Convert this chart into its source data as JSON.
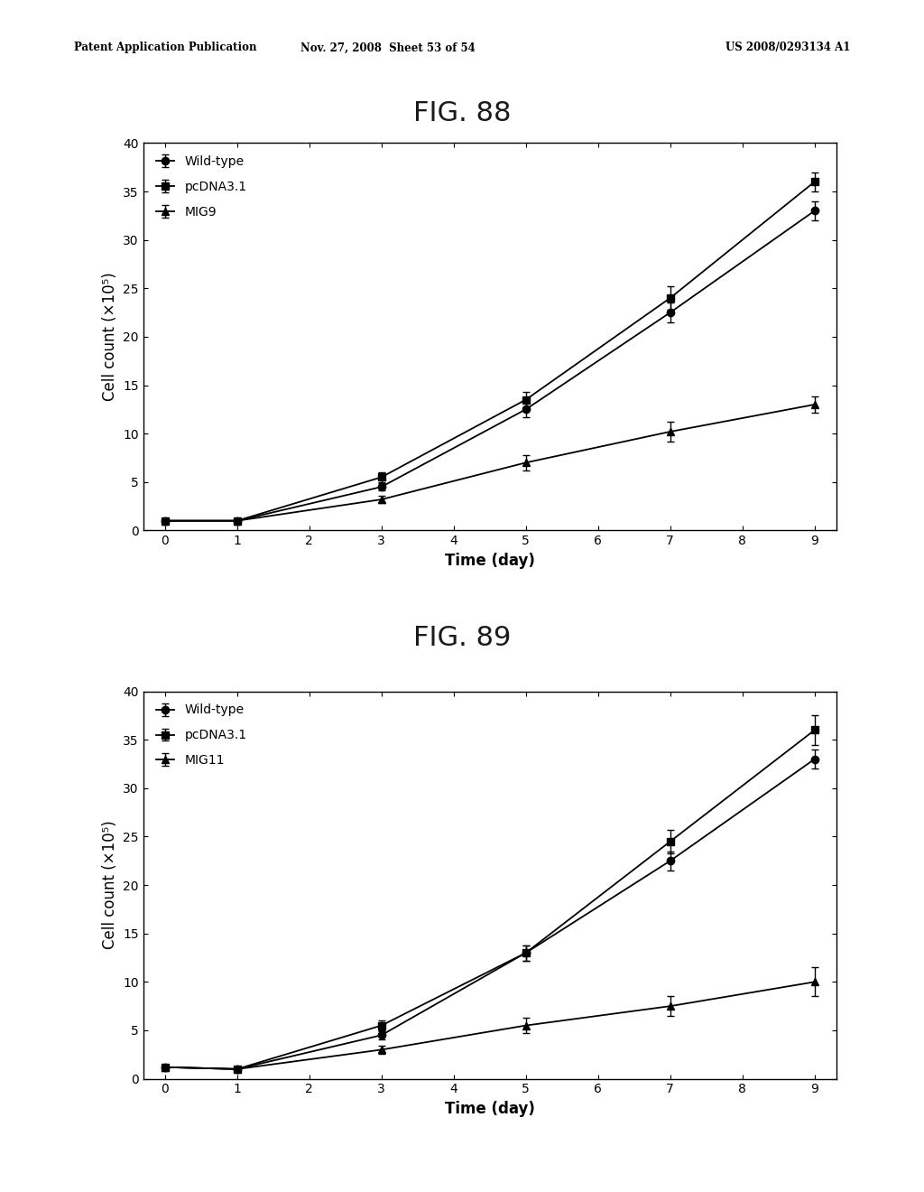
{
  "fig88": {
    "title": "FIG. 88",
    "xlabel": "Time (day)",
    "ylabel": "Cell count (×10⁵)",
    "x": [
      0,
      1,
      3,
      5,
      7,
      9
    ],
    "wildtype": {
      "y": [
        1.0,
        1.0,
        4.5,
        12.5,
        22.5,
        33.0
      ],
      "yerr": [
        0.2,
        0.2,
        0.4,
        0.8,
        1.0,
        1.0
      ]
    },
    "pcDNA31": {
      "y": [
        1.0,
        1.0,
        5.5,
        13.5,
        24.0,
        36.0
      ],
      "yerr": [
        0.2,
        0.2,
        0.5,
        0.8,
        1.2,
        1.0
      ]
    },
    "mig9": {
      "y": [
        1.0,
        1.0,
        3.2,
        7.0,
        10.2,
        13.0
      ],
      "yerr": [
        0.2,
        0.2,
        0.4,
        0.8,
        1.0,
        0.8
      ]
    },
    "legend": [
      "Wild-type",
      "pcDNA3.1",
      "MIG9"
    ],
    "ylim": [
      0,
      40
    ],
    "xlim": [
      -0.3,
      9.3
    ]
  },
  "fig89": {
    "title": "FIG. 89",
    "xlabel": "Time (day)",
    "ylabel": "Cell count (×10⁵)",
    "x": [
      0,
      1,
      3,
      5,
      7,
      9
    ],
    "wildtype": {
      "y": [
        1.2,
        1.0,
        4.5,
        13.0,
        22.5,
        33.0
      ],
      "yerr": [
        0.2,
        0.2,
        0.4,
        0.8,
        1.0,
        1.0
      ]
    },
    "pcDNA31": {
      "y": [
        1.2,
        1.0,
        5.5,
        13.0,
        24.5,
        36.0
      ],
      "yerr": [
        0.2,
        0.2,
        0.5,
        0.8,
        1.2,
        1.5
      ]
    },
    "mig11": {
      "y": [
        1.2,
        1.0,
        3.0,
        5.5,
        7.5,
        10.0
      ],
      "yerr": [
        0.2,
        0.2,
        0.4,
        0.8,
        1.0,
        1.5
      ]
    },
    "legend": [
      "Wild-type",
      "pcDNA3.1",
      "MIG11"
    ],
    "ylim": [
      0,
      40
    ],
    "xlim": [
      -0.3,
      9.3
    ]
  },
  "header_left": "Patent Application Publication",
  "header_mid": "Nov. 27, 2008  Sheet 53 of 54",
  "header_right": "US 2008/0293134 A1",
  "bg_color": "#ffffff",
  "line_color": "#000000",
  "marker_size": 6,
  "line_width": 1.3,
  "tick_fontsize": 10,
  "label_fontsize": 12,
  "title_fontsize": 22,
  "legend_fontsize": 10,
  "header_fontsize": 8.5
}
